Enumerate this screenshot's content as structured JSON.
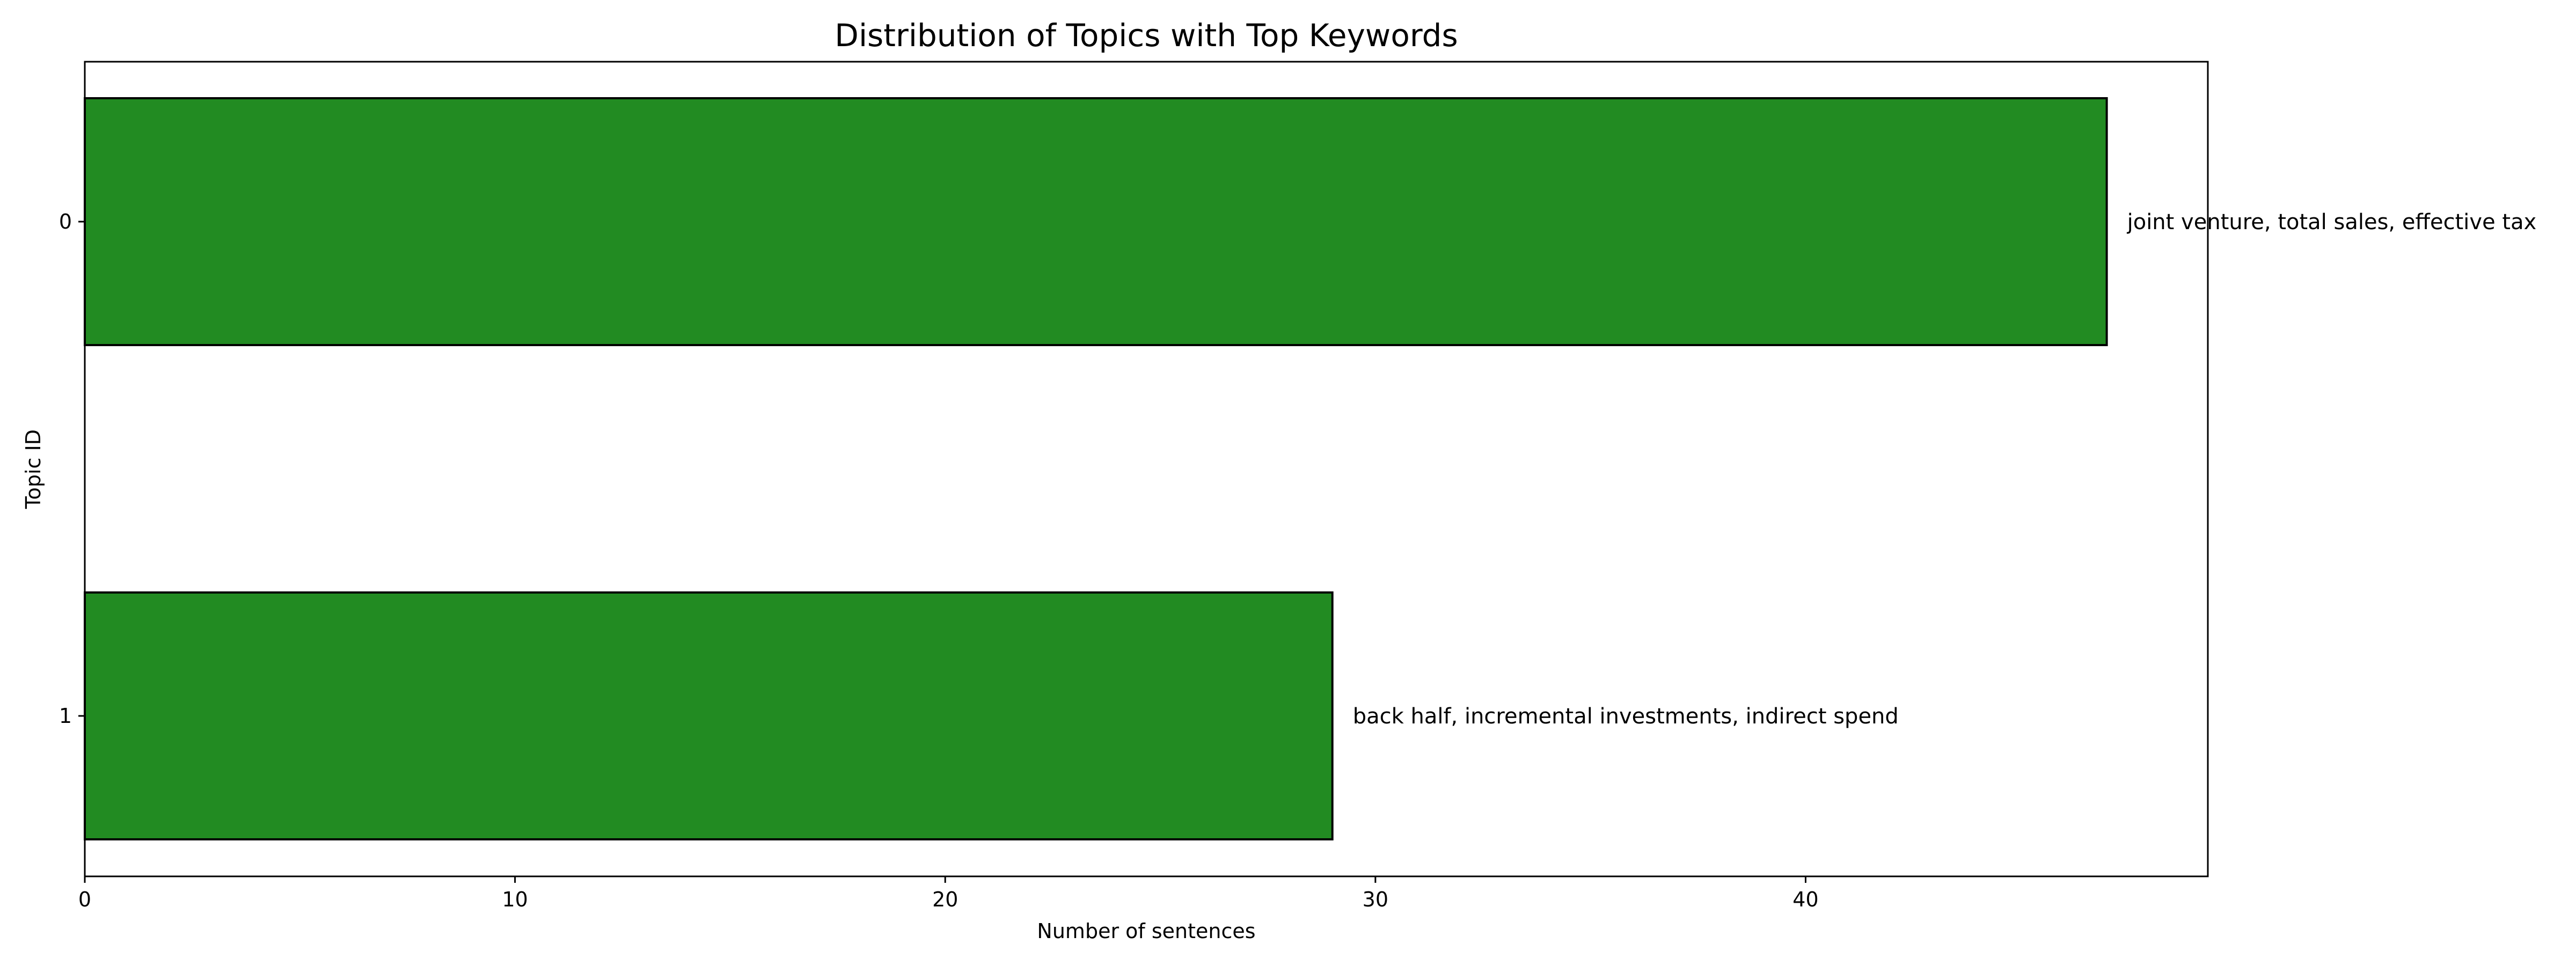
{
  "chart_data": {
    "type": "bar",
    "orientation": "horizontal",
    "title": "Distribution of Topics with Top Keywords",
    "xlabel": "Number of sentences",
    "ylabel": "Topic ID",
    "categories": [
      "0",
      "1"
    ],
    "values": [
      47,
      29
    ],
    "annotations": [
      "joint venture, total sales, effective tax",
      "back half, incremental investments, indirect spend"
    ],
    "xlim": [
      0,
      49.35
    ],
    "xticks": [
      0,
      10,
      20,
      30,
      40
    ],
    "bar_color": "#228B22",
    "edge_color": "#000000",
    "grid": false
  }
}
